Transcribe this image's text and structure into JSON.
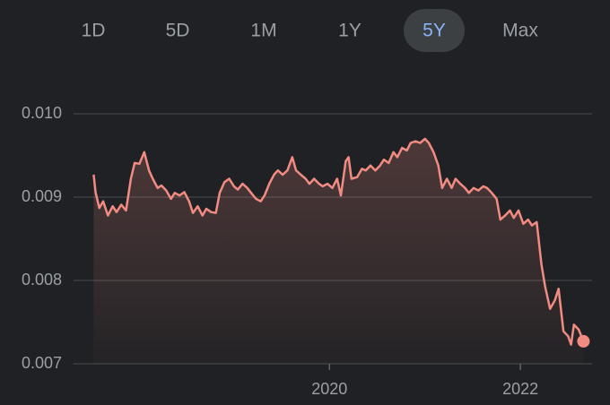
{
  "range_buttons": {
    "labels": [
      "1D",
      "5D",
      "1M",
      "1Y",
      "5Y",
      "Max"
    ],
    "selected": 4
  },
  "chart_data": {
    "type": "line",
    "color": "#f28b82",
    "xlim": [
      2017.32,
      2022.75
    ],
    "xticks": [
      2020,
      2022
    ],
    "ylim": [
      0.007,
      0.01
    ],
    "yticks": [
      {
        "value": 0.01,
        "label": "0.010"
      },
      0.009,
      0.008,
      0.007
    ],
    "grid": true,
    "x": [
      2017.53,
      2017.55,
      2017.59,
      2017.63,
      2017.68,
      2017.73,
      2017.77,
      2017.82,
      2017.87,
      2017.92,
      2017.96,
      2018.01,
      2018.06,
      2018.11,
      2018.15,
      2018.2,
      2018.24,
      2018.29,
      2018.34,
      2018.38,
      2018.43,
      2018.48,
      2018.53,
      2018.57,
      2018.62,
      2018.67,
      2018.71,
      2018.76,
      2018.81,
      2018.85,
      2018.9,
      2018.95,
      2019.0,
      2019.04,
      2019.09,
      2019.14,
      2019.18,
      2019.23,
      2019.28,
      2019.32,
      2019.37,
      2019.42,
      2019.46,
      2019.51,
      2019.56,
      2019.61,
      2019.65,
      2019.7,
      2019.75,
      2019.79,
      2019.84,
      2019.89,
      2019.93,
      2019.98,
      2020.03,
      2020.08,
      2020.12,
      2020.17,
      2020.2,
      2020.23,
      2020.29,
      2020.34,
      2020.38,
      2020.43,
      2020.48,
      2020.53,
      2020.57,
      2020.62,
      2020.67,
      2020.71,
      2020.76,
      2020.81,
      2020.85,
      2020.9,
      2020.95,
      2021.0,
      2021.04,
      2021.09,
      2021.14,
      2021.18,
      2021.23,
      2021.28,
      2021.32,
      2021.37,
      2021.42,
      2021.46,
      2021.51,
      2021.56,
      2021.61,
      2021.65,
      2021.7,
      2021.75,
      2021.79,
      2021.84,
      2021.89,
      2021.93,
      2021.98,
      2022.03,
      2022.08,
      2022.12,
      2022.17,
      2022.22,
      2022.26,
      2022.31,
      2022.36,
      2022.4,
      2022.45,
      2022.5,
      2022.53,
      2022.56,
      2022.61,
      2022.66
    ],
    "values": [
      0.00927,
      0.00906,
      0.00887,
      0.00895,
      0.00878,
      0.00889,
      0.00882,
      0.00891,
      0.00884,
      0.00922,
      0.00941,
      0.0094,
      0.00954,
      0.00932,
      0.00922,
      0.00911,
      0.00914,
      0.00908,
      0.00898,
      0.00905,
      0.00902,
      0.00906,
      0.00895,
      0.00881,
      0.00889,
      0.00878,
      0.00886,
      0.00882,
      0.00881,
      0.00905,
      0.00918,
      0.00922,
      0.00913,
      0.00909,
      0.00916,
      0.00911,
      0.00905,
      0.00898,
      0.00895,
      0.00902,
      0.00916,
      0.00927,
      0.00932,
      0.00927,
      0.00932,
      0.00948,
      0.00932,
      0.00927,
      0.00922,
      0.00916,
      0.00922,
      0.00916,
      0.00913,
      0.00916,
      0.00911,
      0.00922,
      0.00902,
      0.00943,
      0.00948,
      0.00922,
      0.00924,
      0.00934,
      0.00932,
      0.00938,
      0.00932,
      0.00938,
      0.00945,
      0.00941,
      0.00954,
      0.00948,
      0.00959,
      0.00956,
      0.00965,
      0.00967,
      0.00965,
      0.0097,
      0.00965,
      0.00954,
      0.00938,
      0.00911,
      0.00922,
      0.00911,
      0.00922,
      0.00916,
      0.00911,
      0.00905,
      0.00911,
      0.00908,
      0.00913,
      0.00911,
      0.00905,
      0.00898,
      0.00873,
      0.00878,
      0.00884,
      0.00875,
      0.00884,
      0.00868,
      0.00873,
      0.00866,
      0.0087,
      0.00819,
      0.00792,
      0.00766,
      0.00776,
      0.0079,
      0.00739,
      0.00733,
      0.00723,
      0.00747,
      0.00741,
      0.00727
    ]
  }
}
